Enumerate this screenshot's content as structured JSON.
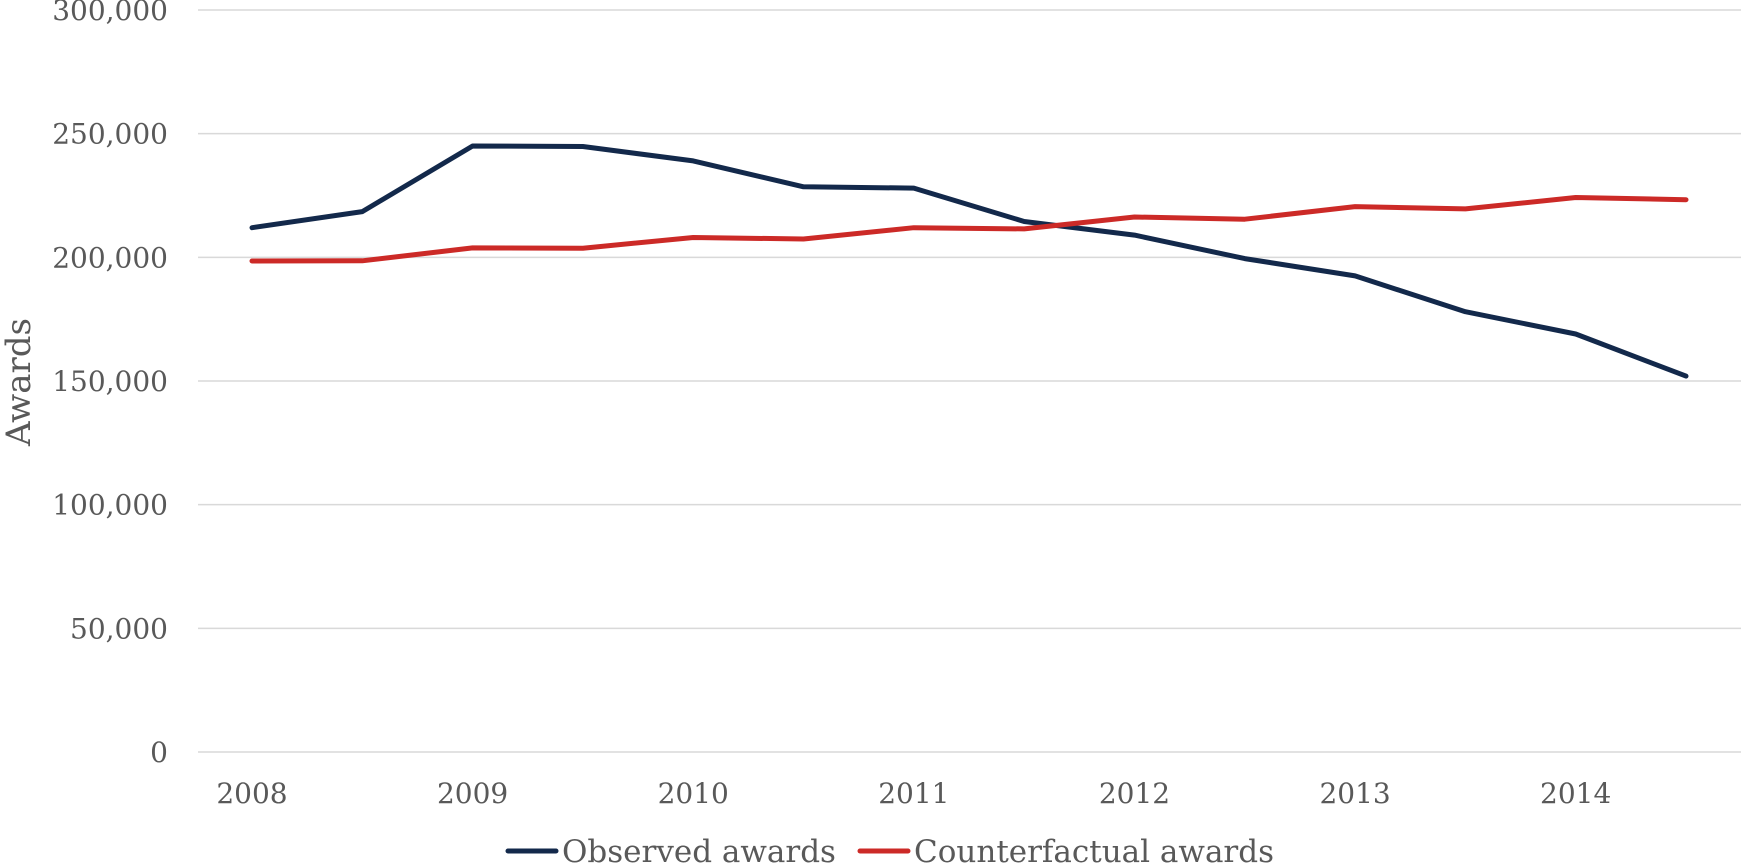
{
  "chart_data": {
    "type": "line",
    "title": "",
    "xlabel": "",
    "ylabel": "Awards",
    "ylim": [
      0,
      300000
    ],
    "yticks": [
      0,
      50000,
      100000,
      150000,
      200000,
      250000,
      300000
    ],
    "ytick_labels": [
      "0",
      "50,000",
      "100,000",
      "150,000",
      "200,000",
      "250,000",
      "300,000"
    ],
    "x": [
      2008,
      2008.5,
      2009,
      2009.5,
      2010,
      2010.5,
      2011,
      2011.5,
      2012,
      2012.5,
      2013,
      2013.5,
      2014,
      2014.5
    ],
    "xticks": [
      2008,
      2009,
      2010,
      2011,
      2012,
      2013,
      2014
    ],
    "xtick_labels": [
      "2008",
      "2009",
      "2010",
      "2011",
      "2012",
      "2013",
      "2014"
    ],
    "grid": "horizontal",
    "legend_position": "bottom",
    "series": [
      {
        "name": "Observed awards",
        "color": "#13294b",
        "values": [
          212000,
          218500,
          245000,
          244800,
          239000,
          228500,
          228000,
          214500,
          209000,
          199500,
          192500,
          178000,
          169000,
          152000
        ]
      },
      {
        "name": "Counterfactual awards",
        "color": "#cc2a27",
        "values": [
          198500,
          198600,
          203800,
          203700,
          208000,
          207400,
          212000,
          211500,
          216300,
          215400,
          220500,
          219600,
          224200,
          223300
        ]
      }
    ]
  }
}
